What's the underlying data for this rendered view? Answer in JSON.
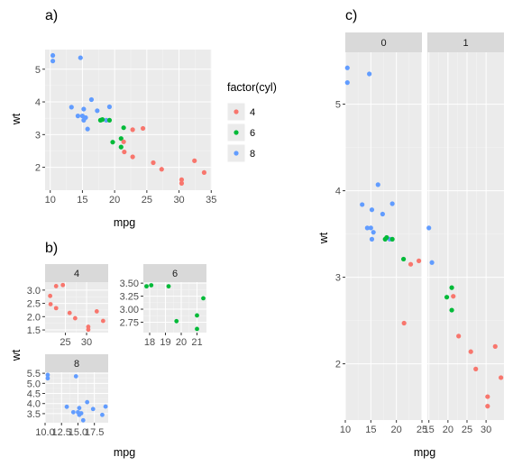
{
  "colors": {
    "4": "#F8766D",
    "6": "#00BA38",
    "8": "#619CFF"
  },
  "chart_data": [
    {
      "tag": "a)",
      "type": "scatter",
      "xlabel": "mpg",
      "ylabel": "wt",
      "xlim": [
        9.2,
        35.1
      ],
      "ylim": [
        1.3,
        5.6
      ],
      "xticks": [
        10,
        15,
        20,
        25,
        30,
        35
      ],
      "yticks": [
        2,
        3,
        4,
        5
      ],
      "legend": {
        "title": "factor(cyl)",
        "placement": "right",
        "entries": [
          "4",
          "6",
          "8"
        ]
      },
      "points": [
        {
          "x": 10.4,
          "y": 5.42,
          "cyl": "8"
        },
        {
          "x": 10.4,
          "y": 5.25,
          "cyl": "8"
        },
        {
          "x": 14.7,
          "y": 5.35,
          "cyl": "8"
        },
        {
          "x": 13.3,
          "y": 3.84,
          "cyl": "8"
        },
        {
          "x": 14.3,
          "y": 3.57,
          "cyl": "8"
        },
        {
          "x": 15.0,
          "y": 3.57,
          "cyl": "8"
        },
        {
          "x": 15.2,
          "y": 3.78,
          "cyl": "8"
        },
        {
          "x": 15.2,
          "y": 3.44,
          "cyl": "8"
        },
        {
          "x": 15.5,
          "y": 3.52,
          "cyl": "8"
        },
        {
          "x": 15.8,
          "y": 3.17,
          "cyl": "8"
        },
        {
          "x": 16.4,
          "y": 4.07,
          "cyl": "8"
        },
        {
          "x": 17.3,
          "y": 3.73,
          "cyl": "8"
        },
        {
          "x": 18.7,
          "y": 3.44,
          "cyl": "8"
        },
        {
          "x": 19.2,
          "y": 3.85,
          "cyl": "8"
        },
        {
          "x": 17.8,
          "y": 3.44,
          "cyl": "6"
        },
        {
          "x": 18.1,
          "y": 3.46,
          "cyl": "6"
        },
        {
          "x": 19.2,
          "y": 3.44,
          "cyl": "6"
        },
        {
          "x": 19.7,
          "y": 2.77,
          "cyl": "6"
        },
        {
          "x": 21.0,
          "y": 2.62,
          "cyl": "6"
        },
        {
          "x": 21.0,
          "y": 2.88,
          "cyl": "6"
        },
        {
          "x": 21.4,
          "y": 3.21,
          "cyl": "6"
        },
        {
          "x": 21.4,
          "y": 2.78,
          "cyl": "4"
        },
        {
          "x": 21.5,
          "y": 2.47,
          "cyl": "4"
        },
        {
          "x": 22.8,
          "y": 3.15,
          "cyl": "4"
        },
        {
          "x": 22.8,
          "y": 2.32,
          "cyl": "4"
        },
        {
          "x": 24.4,
          "y": 3.19,
          "cyl": "4"
        },
        {
          "x": 26.0,
          "y": 2.14,
          "cyl": "4"
        },
        {
          "x": 27.3,
          "y": 1.94,
          "cyl": "4"
        },
        {
          "x": 30.4,
          "y": 1.62,
          "cyl": "4"
        },
        {
          "x": 30.4,
          "y": 1.51,
          "cyl": "4"
        },
        {
          "x": 32.4,
          "y": 2.2,
          "cyl": "4"
        },
        {
          "x": 33.9,
          "y": 1.84,
          "cyl": "4"
        }
      ]
    },
    {
      "tag": "b)",
      "type": "scatter",
      "xlabel": "mpg",
      "ylabel": "wt",
      "facet_by": "cyl",
      "scales": "free",
      "panels": [
        {
          "strip": "4",
          "xlim": [
            20.2,
            35.1
          ],
          "ylim": [
            1.4,
            3.3
          ],
          "xticks": [
            25,
            30
          ],
          "yticks": [
            1.5,
            2.0,
            2.5,
            3.0
          ],
          "xtick_labels": [
            "25",
            "30"
          ],
          "ytick_labels": [
            "1.5",
            "2.0",
            "2.5",
            "3.0"
          ],
          "points": [
            {
              "x": 21.4,
              "y": 2.78,
              "cyl": "4"
            },
            {
              "x": 21.5,
              "y": 2.47,
              "cyl": "4"
            },
            {
              "x": 22.8,
              "y": 3.15,
              "cyl": "4"
            },
            {
              "x": 22.8,
              "y": 2.32,
              "cyl": "4"
            },
            {
              "x": 24.4,
              "y": 3.19,
              "cyl": "4"
            },
            {
              "x": 26.0,
              "y": 2.14,
              "cyl": "4"
            },
            {
              "x": 27.3,
              "y": 1.94,
              "cyl": "4"
            },
            {
              "x": 30.4,
              "y": 1.62,
              "cyl": "4"
            },
            {
              "x": 30.4,
              "y": 1.51,
              "cyl": "4"
            },
            {
              "x": 32.4,
              "y": 2.2,
              "cyl": "4"
            },
            {
              "x": 33.9,
              "y": 1.84,
              "cyl": "4"
            }
          ]
        },
        {
          "strip": "6",
          "xlim": [
            17.6,
            21.6
          ],
          "ylim": [
            2.55,
            3.52
          ],
          "xticks": [
            18,
            19,
            20,
            21
          ],
          "yticks": [
            2.75,
            3.0,
            3.25,
            3.5
          ],
          "xtick_labels": [
            "18",
            "19",
            "20",
            "21"
          ],
          "ytick_labels": [
            "2.75",
            "3.00",
            "3.25",
            "3.50"
          ],
          "points": [
            {
              "x": 17.8,
              "y": 3.44,
              "cyl": "6"
            },
            {
              "x": 18.1,
              "y": 3.46,
              "cyl": "6"
            },
            {
              "x": 19.2,
              "y": 3.44,
              "cyl": "6"
            },
            {
              "x": 19.7,
              "y": 2.77,
              "cyl": "6"
            },
            {
              "x": 21.0,
              "y": 2.62,
              "cyl": "6"
            },
            {
              "x": 21.0,
              "y": 2.88,
              "cyl": "6"
            },
            {
              "x": 21.4,
              "y": 3.21,
              "cyl": "6"
            }
          ]
        },
        {
          "strip": "8",
          "xlim": [
            10.0,
            19.6
          ],
          "ylim": [
            3.05,
            5.55
          ],
          "xticks": [
            10,
            12.5,
            15,
            17.5
          ],
          "yticks": [
            3.5,
            4.0,
            4.5,
            5.0,
            5.5
          ],
          "xtick_labels": [
            "10.0",
            "12.5",
            "15.0",
            "17.5"
          ],
          "ytick_labels": [
            "3.5",
            "4.0",
            "4.5",
            "5.0",
            "5.5"
          ],
          "points": [
            {
              "x": 10.4,
              "y": 5.42,
              "cyl": "8"
            },
            {
              "x": 10.4,
              "y": 5.25,
              "cyl": "8"
            },
            {
              "x": 14.7,
              "y": 5.35,
              "cyl": "8"
            },
            {
              "x": 13.3,
              "y": 3.84,
              "cyl": "8"
            },
            {
              "x": 14.3,
              "y": 3.57,
              "cyl": "8"
            },
            {
              "x": 15.0,
              "y": 3.57,
              "cyl": "8"
            },
            {
              "x": 15.2,
              "y": 3.78,
              "cyl": "8"
            },
            {
              "x": 15.2,
              "y": 3.44,
              "cyl": "8"
            },
            {
              "x": 15.5,
              "y": 3.52,
              "cyl": "8"
            },
            {
              "x": 15.8,
              "y": 3.17,
              "cyl": "8"
            },
            {
              "x": 16.4,
              "y": 4.07,
              "cyl": "8"
            },
            {
              "x": 17.3,
              "y": 3.73,
              "cyl": "8"
            },
            {
              "x": 18.7,
              "y": 3.44,
              "cyl": "8"
            },
            {
              "x": 19.2,
              "y": 3.85,
              "cyl": "8"
            }
          ]
        }
      ]
    },
    {
      "tag": "c)",
      "type": "scatter",
      "xlabel": "mpg",
      "ylabel": "wt",
      "facet_by": "am",
      "scales": "free_x",
      "ylim": [
        1.35,
        5.6
      ],
      "yticks": [
        2,
        3,
        4,
        5
      ],
      "panels": [
        {
          "strip": "0",
          "xlim": [
            10.0,
            25.0
          ],
          "xticks": [
            10,
            15,
            20,
            25
          ],
          "points": [
            {
              "x": 10.4,
              "y": 5.42,
              "cyl": "8"
            },
            {
              "x": 10.4,
              "y": 5.25,
              "cyl": "8"
            },
            {
              "x": 14.7,
              "y": 5.35,
              "cyl": "8"
            },
            {
              "x": 13.3,
              "y": 3.84,
              "cyl": "8"
            },
            {
              "x": 14.3,
              "y": 3.57,
              "cyl": "8"
            },
            {
              "x": 15.0,
              "y": 3.57,
              "cyl": "8"
            },
            {
              "x": 15.2,
              "y": 3.78,
              "cyl": "8"
            },
            {
              "x": 15.2,
              "y": 3.44,
              "cyl": "8"
            },
            {
              "x": 15.5,
              "y": 3.52,
              "cyl": "8"
            },
            {
              "x": 16.4,
              "y": 4.07,
              "cyl": "8"
            },
            {
              "x": 17.3,
              "y": 3.73,
              "cyl": "8"
            },
            {
              "x": 18.7,
              "y": 3.44,
              "cyl": "8"
            },
            {
              "x": 19.2,
              "y": 3.85,
              "cyl": "8"
            },
            {
              "x": 17.8,
              "y": 3.44,
              "cyl": "6"
            },
            {
              "x": 18.1,
              "y": 3.46,
              "cyl": "6"
            },
            {
              "x": 19.2,
              "y": 3.44,
              "cyl": "6"
            },
            {
              "x": 21.4,
              "y": 3.21,
              "cyl": "6"
            },
            {
              "x": 21.5,
              "y": 2.47,
              "cyl": "4"
            },
            {
              "x": 22.8,
              "y": 3.15,
              "cyl": "4"
            },
            {
              "x": 24.4,
              "y": 3.19,
              "cyl": "4"
            }
          ]
        },
        {
          "strip": "1",
          "xlim": [
            14.6,
            34.7
          ],
          "xticks": [
            15,
            20,
            25,
            30
          ],
          "points": [
            {
              "x": 15.8,
              "y": 3.17,
              "cyl": "8"
            },
            {
              "x": 15.0,
              "y": 3.57,
              "cyl": "8"
            },
            {
              "x": 19.7,
              "y": 2.77,
              "cyl": "6"
            },
            {
              "x": 21.0,
              "y": 2.62,
              "cyl": "6"
            },
            {
              "x": 21.0,
              "y": 2.88,
              "cyl": "6"
            },
            {
              "x": 21.4,
              "y": 2.78,
              "cyl": "4"
            },
            {
              "x": 22.8,
              "y": 2.32,
              "cyl": "4"
            },
            {
              "x": 26.0,
              "y": 2.14,
              "cyl": "4"
            },
            {
              "x": 27.3,
              "y": 1.94,
              "cyl": "4"
            },
            {
              "x": 30.4,
              "y": 1.62,
              "cyl": "4"
            },
            {
              "x": 30.4,
              "y": 1.51,
              "cyl": "4"
            },
            {
              "x": 32.4,
              "y": 2.2,
              "cyl": "4"
            },
            {
              "x": 33.9,
              "y": 1.84,
              "cyl": "4"
            }
          ]
        }
      ]
    }
  ]
}
